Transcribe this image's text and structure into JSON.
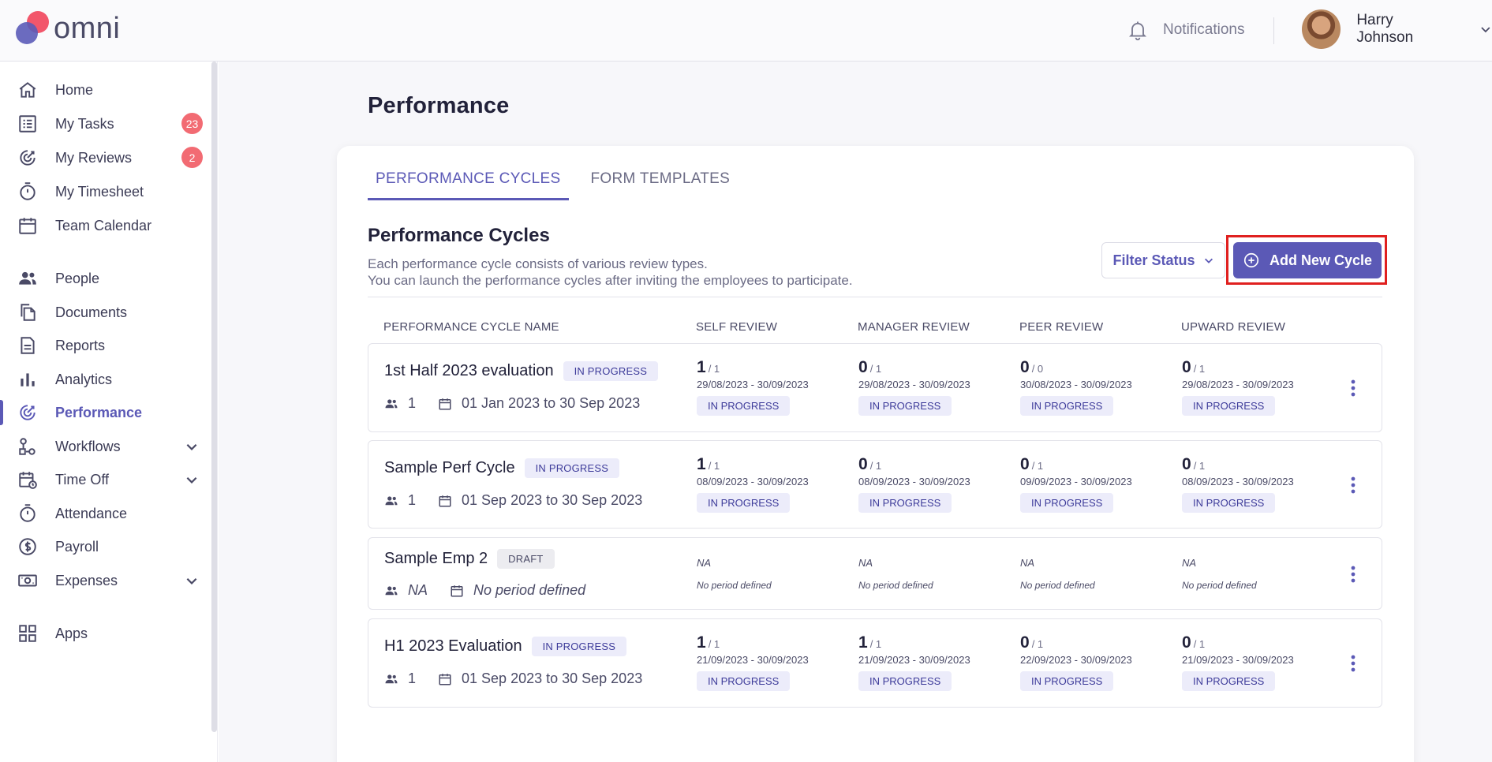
{
  "app": {
    "name": "omni"
  },
  "header": {
    "notifications_label": "Notifications",
    "user_name": "Harry Johnson"
  },
  "sidebar": {
    "items": [
      {
        "label": "Home",
        "icon": "home-icon"
      },
      {
        "label": "My Tasks",
        "icon": "tasks-icon",
        "badge": "23"
      },
      {
        "label": "My Reviews",
        "icon": "reviews-icon",
        "badge": "2"
      },
      {
        "label": "My Timesheet",
        "icon": "timer-icon"
      },
      {
        "label": "Team Calendar",
        "icon": "calendar-icon"
      },
      {
        "label": "People",
        "icon": "people-icon"
      },
      {
        "label": "Documents",
        "icon": "documents-icon"
      },
      {
        "label": "Reports",
        "icon": "reports-icon"
      },
      {
        "label": "Analytics",
        "icon": "analytics-icon"
      },
      {
        "label": "Performance",
        "icon": "performance-icon",
        "active": true
      },
      {
        "label": "Workflows",
        "icon": "workflows-icon",
        "expandable": true
      },
      {
        "label": "Time Off",
        "icon": "time-off-icon",
        "expandable": true
      },
      {
        "label": "Attendance",
        "icon": "attendance-icon"
      },
      {
        "label": "Payroll",
        "icon": "payroll-icon"
      },
      {
        "label": "Expenses",
        "icon": "expenses-icon",
        "expandable": true
      },
      {
        "label": "Apps",
        "icon": "apps-icon"
      }
    ]
  },
  "page": {
    "title": "Performance"
  },
  "tabs": [
    {
      "label": "PERFORMANCE CYCLES",
      "active": true
    },
    {
      "label": "FORM TEMPLATES",
      "active": false
    }
  ],
  "section": {
    "title": "Performance Cycles",
    "desc_line1": "Each performance cycle consists of various review types.",
    "desc_line2": "You can launch the performance cycles after inviting the employees to participate.",
    "filter_label": "Filter Status",
    "add_label": "Add New Cycle"
  },
  "table": {
    "headers": [
      "PERFORMANCE CYCLE NAME",
      "SELF REVIEW",
      "MANAGER REVIEW",
      "PEER REVIEW",
      "UPWARD REVIEW"
    ],
    "rows": [
      {
        "name": "1st Half 2023 evaluation",
        "status": "IN PROGRESS",
        "participants": "1",
        "period": "01 Jan 2023 to 30 Sep 2023",
        "reviews": [
          {
            "score": "1",
            "total": "/ 1",
            "dates": "29/08/2023 - 30/09/2023",
            "status": "IN PROGRESS"
          },
          {
            "score": "0",
            "total": "/ 1",
            "dates": "29/08/2023 - 30/09/2023",
            "status": "IN PROGRESS"
          },
          {
            "score": "0",
            "total": "/ 0",
            "dates": "30/08/2023 - 30/09/2023",
            "status": "IN PROGRESS"
          },
          {
            "score": "0",
            "total": "/ 1",
            "dates": "29/08/2023 - 30/09/2023",
            "status": "IN PROGRESS"
          }
        ]
      },
      {
        "name": "Sample Perf Cycle",
        "status": "IN PROGRESS",
        "participants": "1",
        "period": "01 Sep 2023 to 30 Sep 2023",
        "reviews": [
          {
            "score": "1",
            "total": "/ 1",
            "dates": "08/09/2023 - 30/09/2023",
            "status": "IN PROGRESS"
          },
          {
            "score": "0",
            "total": "/ 1",
            "dates": "08/09/2023 - 30/09/2023",
            "status": "IN PROGRESS"
          },
          {
            "score": "0",
            "total": "/ 1",
            "dates": "09/09/2023 - 30/09/2023",
            "status": "IN PROGRESS"
          },
          {
            "score": "0",
            "total": "/ 1",
            "dates": "08/09/2023 - 30/09/2023",
            "status": "IN PROGRESS"
          }
        ]
      },
      {
        "name": "Sample Emp 2",
        "status": "DRAFT",
        "participants": "NA",
        "period": "No period defined",
        "reviews": [
          {
            "na": "NA",
            "period": "No period defined"
          },
          {
            "na": "NA",
            "period": "No period defined"
          },
          {
            "na": "NA",
            "period": "No period defined"
          },
          {
            "na": "NA",
            "period": "No period defined"
          }
        ]
      },
      {
        "name": "H1 2023 Evaluation",
        "status": "IN PROGRESS",
        "participants": "1",
        "period": "01 Sep 2023 to 30 Sep 2023",
        "reviews": [
          {
            "score": "1",
            "total": "/ 1",
            "dates": "21/09/2023 - 30/09/2023",
            "status": "IN PROGRESS"
          },
          {
            "score": "1",
            "total": "/ 1",
            "dates": "21/09/2023 - 30/09/2023",
            "status": "IN PROGRESS"
          },
          {
            "score": "0",
            "total": "/ 1",
            "dates": "22/09/2023 - 30/09/2023",
            "status": "IN PROGRESS"
          },
          {
            "score": "0",
            "total": "/ 1",
            "dates": "21/09/2023 - 30/09/2023",
            "status": "IN PROGRESS"
          }
        ]
      }
    ]
  },
  "colors": {
    "accent": "#5b59b6",
    "badge": "#f26b73",
    "highlight": "#e0201f"
  }
}
